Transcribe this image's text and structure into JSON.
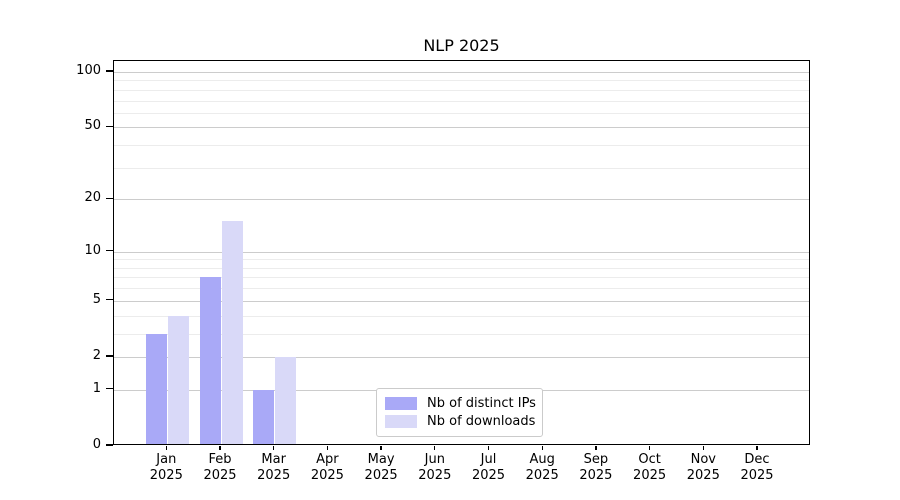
{
  "chart_data": {
    "type": "bar",
    "title": "NLP 2025",
    "categories": [
      "Jan",
      "Feb",
      "Mar",
      "Apr",
      "May",
      "Jun",
      "Jul",
      "Aug",
      "Sep",
      "Oct",
      "Nov",
      "Dec"
    ],
    "category_year": "2025",
    "series": [
      {
        "name": "Nb of distinct IPs",
        "color": "#a9a9f7",
        "values": [
          3,
          7,
          1,
          0,
          0,
          0,
          0,
          0,
          0,
          0,
          0,
          0
        ]
      },
      {
        "name": "Nb of downloads",
        "color": "#d9d9f8",
        "values": [
          4,
          15,
          2,
          0,
          0,
          0,
          0,
          0,
          0,
          0,
          0,
          0
        ]
      }
    ],
    "yscale": "log1p",
    "yticks": [
      0,
      1,
      2,
      5,
      10,
      20,
      50,
      100
    ],
    "minor_gridlines": [
      3,
      4,
      6,
      7,
      8,
      9,
      30,
      40,
      60,
      70,
      80,
      90
    ],
    "ylim": [
      0,
      114.6
    ],
    "grid": true,
    "legend_position": "lower-center"
  },
  "colors": {
    "major_grid": "#cccccc",
    "minor_grid": "#ececec",
    "axis": "#000000",
    "legend_border": "#cbcbcb",
    "text": "#000000"
  }
}
